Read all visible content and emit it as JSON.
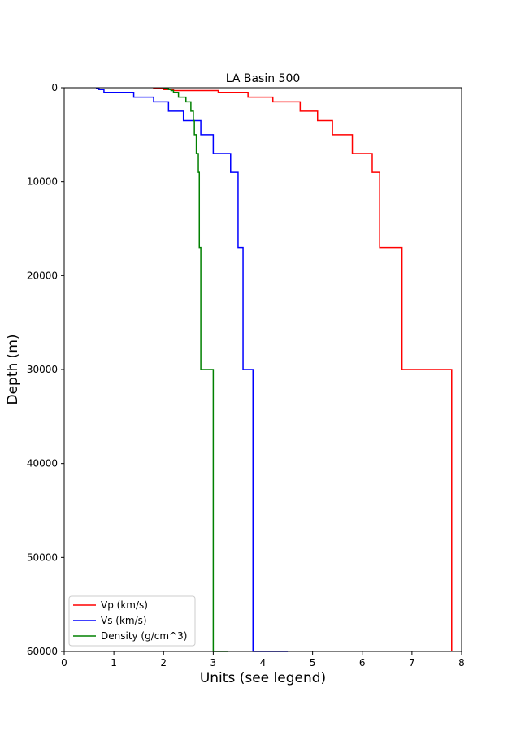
{
  "chart_data": {
    "type": "line",
    "title": "LA Basin 500",
    "xlabel": "Units (see legend)",
    "ylabel": "Depth (m)",
    "xlim": [
      0,
      8
    ],
    "ylim": [
      60000,
      0
    ],
    "y_inverted": true,
    "grid": false,
    "legend_position": "lower-left",
    "x_ticks": [
      0,
      1,
      2,
      3,
      4,
      5,
      6,
      7,
      8
    ],
    "y_ticks": [
      0,
      10000,
      20000,
      30000,
      40000,
      50000,
      60000
    ],
    "series": [
      {
        "name": "Vp (km/s)",
        "color": "#ff0000",
        "step": "post",
        "depth": [
          0,
          100,
          200,
          300,
          500,
          1000,
          1500,
          2500,
          3500,
          5000,
          7000,
          9000,
          17000,
          30000,
          60000
        ],
        "values": [
          1.8,
          2.0,
          2.2,
          3.1,
          3.7,
          4.2,
          4.75,
          5.1,
          5.4,
          5.8,
          6.2,
          6.35,
          6.8,
          7.8,
          7.8
        ]
      },
      {
        "name": "Vs (km/s)",
        "color": "#0000ff",
        "step": "post",
        "depth": [
          0,
          100,
          200,
          500,
          1000,
          1500,
          2500,
          3500,
          5000,
          7000,
          9000,
          17000,
          30000,
          60000
        ],
        "values": [
          0.65,
          0.7,
          0.8,
          1.4,
          1.8,
          2.1,
          2.4,
          2.75,
          3.0,
          3.35,
          3.5,
          3.6,
          3.8,
          4.5
        ]
      },
      {
        "name": "Density (g/cm^3)",
        "color": "#008000",
        "step": "post",
        "depth": [
          0,
          100,
          200,
          300,
          500,
          1000,
          1500,
          2500,
          3500,
          5000,
          7000,
          9000,
          17000,
          30000,
          60000
        ],
        "values": [
          2.0,
          2.1,
          2.15,
          2.2,
          2.3,
          2.45,
          2.55,
          2.6,
          2.62,
          2.66,
          2.7,
          2.72,
          2.75,
          3.0,
          3.3
        ]
      }
    ]
  }
}
